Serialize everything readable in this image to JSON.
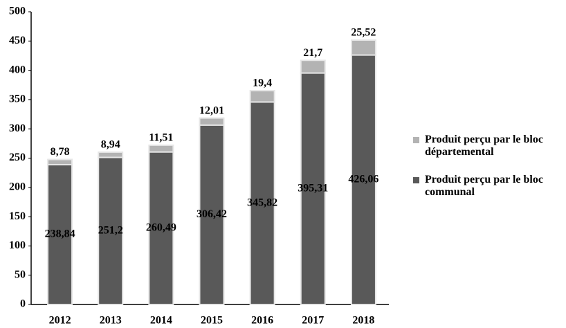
{
  "chart_data": {
    "type": "stacked_bar",
    "categories": [
      "2012",
      "2013",
      "2014",
      "2015",
      "2016",
      "2017",
      "2018"
    ],
    "series": [
      {
        "name": "Produit perçu par le bloc communal",
        "color": "#595959",
        "values": [
          238.84,
          251.2,
          260.49,
          306.42,
          345.82,
          395.31,
          426.06
        ],
        "value_labels": [
          "238,84",
          "251,2",
          "260,49",
          "306,42",
          "345,82",
          "395,31",
          "426,06"
        ]
      },
      {
        "name": "Produit perçu par le bloc départemental",
        "color": "#b3b3b3",
        "values": [
          8.78,
          8.94,
          11.51,
          12.01,
          19.4,
          21.7,
          25.52
        ],
        "value_labels": [
          "8,78",
          "8,94",
          "11,51",
          "12,01",
          "19,4",
          "21,7",
          "25,52"
        ]
      }
    ],
    "ylim": [
      0,
      500
    ],
    "yticks": [
      0,
      50,
      100,
      150,
      200,
      250,
      300,
      350,
      400,
      450,
      500
    ]
  }
}
